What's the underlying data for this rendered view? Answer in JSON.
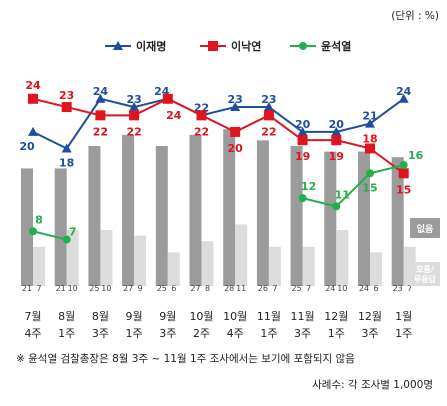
{
  "unit_label": "(단위 : %)",
  "footnote": "※ 윤석열 검찰총장은 8월 3주 ~ 11월 1주 조사에서는 보기에 포함되지 않음",
  "sample": "사례수: 각 조사별 1,000명",
  "side_labels": {
    "none": "없음",
    "dk": "모름/\n무응답"
  },
  "chart_data": {
    "type": "line",
    "categories": [
      {
        "month": "7월",
        "week": "4주"
      },
      {
        "month": "8월",
        "week": "1주"
      },
      {
        "month": "8월",
        "week": "3주"
      },
      {
        "month": "9월",
        "week": "1주"
      },
      {
        "month": "9월",
        "week": "3주"
      },
      {
        "month": "10월",
        "week": "2주"
      },
      {
        "month": "10월",
        "week": "4주"
      },
      {
        "month": "11월",
        "week": "1주"
      },
      {
        "month": "11월",
        "week": "3주"
      },
      {
        "month": "12월",
        "week": "1주"
      },
      {
        "month": "12월",
        "week": "3주"
      },
      {
        "month": "1월",
        "week": "1주"
      }
    ],
    "series": [
      {
        "name": "이재명",
        "color": "#1f4e9c",
        "marker": "triangle",
        "values": [
          20,
          18,
          24,
          23,
          24,
          22,
          23,
          23,
          20,
          20,
          21,
          24
        ]
      },
      {
        "name": "이낙연",
        "color": "#e0141e",
        "marker": "square",
        "values": [
          24,
          23,
          22,
          22,
          24,
          22,
          20,
          22,
          19,
          19,
          18,
          15
        ]
      },
      {
        "name": "윤석열",
        "color": "#22b04b",
        "marker": "circle",
        "values": [
          8,
          7,
          null,
          null,
          null,
          null,
          null,
          null,
          12,
          11,
          15,
          16
        ]
      }
    ],
    "bars": [
      {
        "name": "없음",
        "color": "#9b9b9b",
        "values": [
          21,
          21,
          25,
          27,
          25,
          27,
          28,
          26,
          25,
          24,
          24,
          23
        ]
      },
      {
        "name": "모름/무응답",
        "color": "#dcdcdc",
        "values": [
          7,
          10,
          10,
          9,
          6,
          8,
          11,
          7,
          7,
          10,
          6,
          7
        ]
      }
    ]
  }
}
